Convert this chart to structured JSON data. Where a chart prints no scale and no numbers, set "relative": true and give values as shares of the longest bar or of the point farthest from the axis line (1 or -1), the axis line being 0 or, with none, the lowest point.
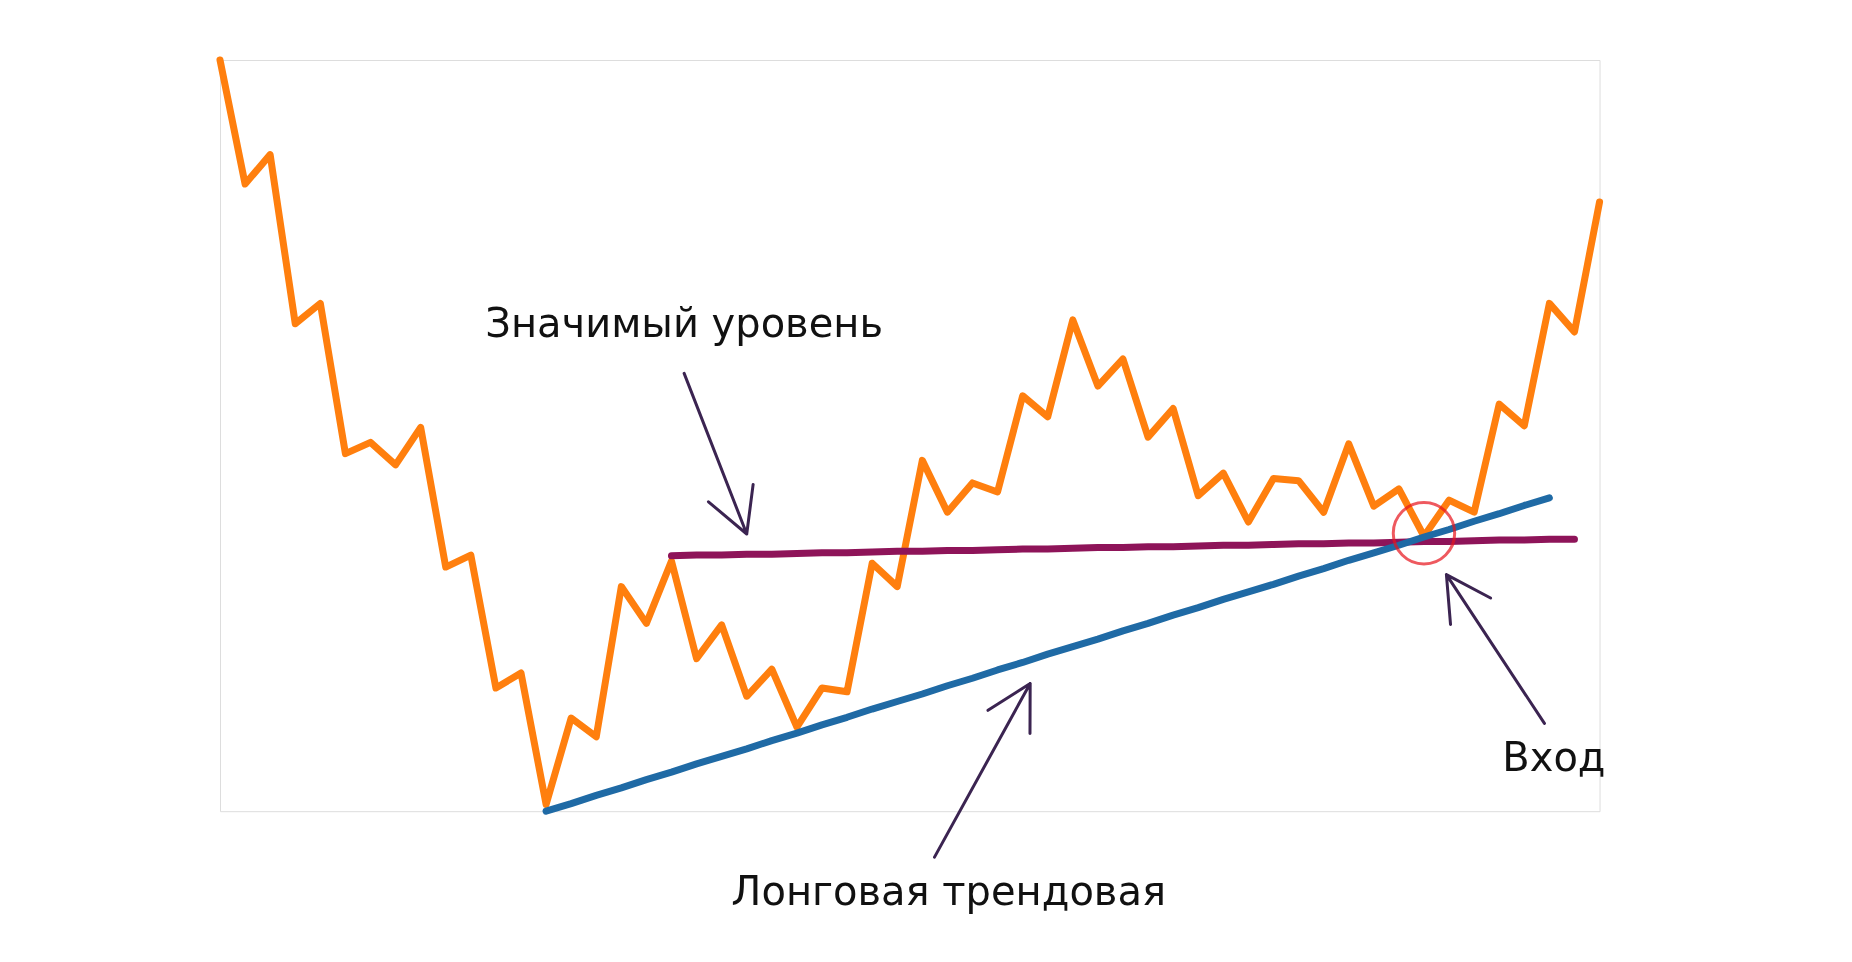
{
  "chart_data": {
    "type": "line",
    "relative": true,
    "legend": false,
    "grid": false,
    "tick_labels": false,
    "marker": "none",
    "line_style": "solid",
    "categories": [
      null,
      null,
      null,
      null,
      null,
      null,
      null,
      null,
      null,
      null,
      null,
      null,
      null,
      null,
      null,
      null,
      null,
      null,
      null,
      null,
      null,
      null,
      null,
      null,
      null,
      null,
      null,
      null,
      null,
      null,
      null,
      null,
      null,
      null,
      null,
      null,
      null,
      null,
      null,
      null,
      null,
      null,
      null,
      null,
      null,
      null,
      null,
      null,
      null,
      null,
      null,
      null,
      null,
      null,
      null,
      null
    ],
    "series": [
      {
        "color": "#ff7f0e",
        "values": [
          1.0,
          0.835,
          0.874,
          0.649,
          0.676,
          0.476,
          0.491,
          0.461,
          0.511,
          0.325,
          0.341,
          0.164,
          0.184,
          0.009,
          0.124,
          0.099,
          0.299,
          0.25,
          0.333,
          0.203,
          0.248,
          0.153,
          0.189,
          0.112,
          0.164,
          0.159,
          0.33,
          0.299,
          0.467,
          0.398,
          0.437,
          0.425,
          0.553,
          0.525,
          0.654,
          0.566,
          0.602,
          0.498,
          0.536,
          0.42,
          0.45,
          0.385,
          0.443,
          0.44,
          0.398,
          0.489,
          0.406,
          0.429,
          0.366,
          0.414,
          0.398,
          0.542,
          0.513,
          0.676,
          0.638,
          0.811
        ]
      },
      {
        "color": "#8e1459",
        "values": [
          null,
          null,
          null,
          null,
          null,
          null,
          null,
          null,
          null,
          null,
          null,
          null,
          null,
          null,
          null,
          null,
          null,
          null,
          0.34,
          0.341,
          0.341,
          0.342,
          0.342,
          0.343,
          0.344,
          0.344,
          0.345,
          0.346,
          0.346,
          0.347,
          0.347,
          0.348,
          0.349,
          0.349,
          0.35,
          0.351,
          0.351,
          0.352,
          0.352,
          0.353,
          0.354,
          0.354,
          0.355,
          0.356,
          0.356,
          0.357,
          0.357,
          0.358,
          0.359,
          0.359,
          0.36,
          0.361,
          0.361,
          0.362,
          0.362,
          null
        ]
      },
      {
        "color": "#1f6aa5",
        "values": [
          null,
          null,
          null,
          null,
          null,
          null,
          null,
          null,
          null,
          null,
          null,
          null,
          null,
          0,
          0.01,
          0.021,
          0.031,
          0.042,
          0.052,
          0.063,
          0.073,
          0.083,
          0.094,
          0.104,
          0.115,
          0.125,
          0.136,
          0.146,
          0.156,
          0.167,
          0.177,
          0.188,
          0.198,
          0.209,
          0.219,
          0.229,
          0.24,
          0.25,
          0.261,
          0.271,
          0.282,
          0.292,
          0.302,
          0.313,
          0.323,
          0.334,
          0.344,
          0.354,
          0.365,
          0.375,
          0.386,
          0.396,
          0.407,
          0.417,
          null,
          null
        ]
      }
    ],
    "annotations": [
      "Значимый уровень",
      "Лонговая трендовая",
      "Вход"
    ]
  }
}
